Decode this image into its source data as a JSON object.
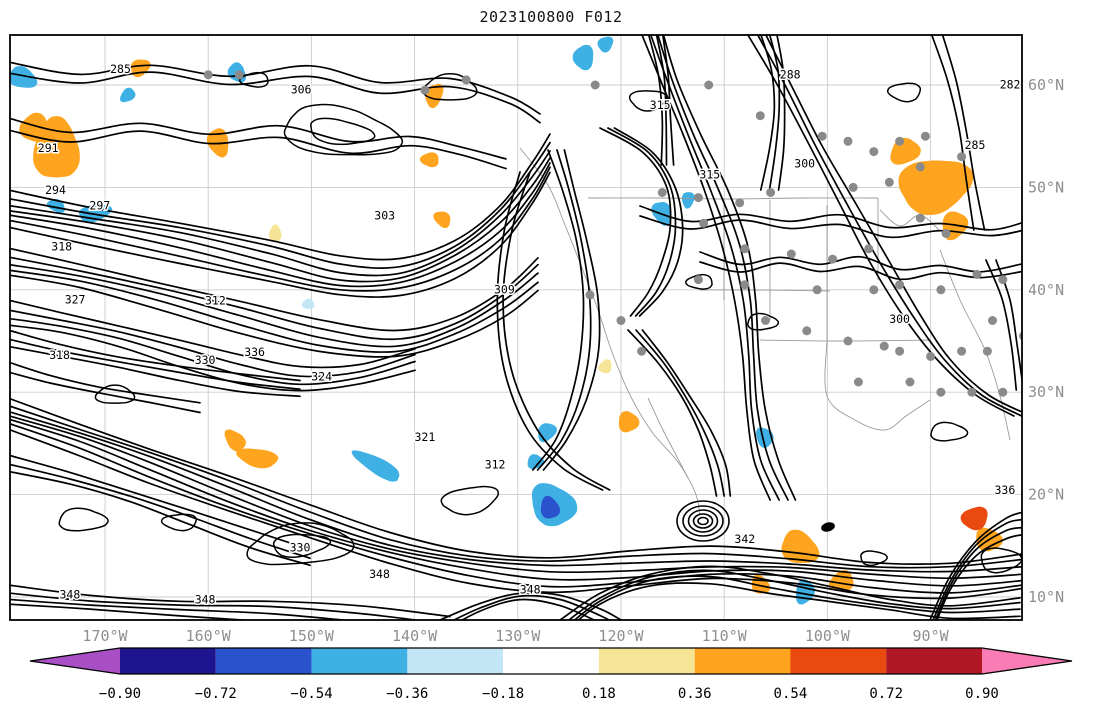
{
  "title": "2023100800 F012",
  "chart_data": {
    "type": "contour-map",
    "title": "2023100800 F012",
    "grid": true,
    "map_extent": {
      "lon_min": -179.2,
      "lon_max": -81.1,
      "lat_min": 7.8,
      "lat_max": 64.9
    },
    "x_axis": {
      "tick_labels": [
        "170°W",
        "160°W",
        "150°W",
        "140°W",
        "130°W",
        "120°W",
        "110°W",
        "100°W",
        "90°W"
      ],
      "tick_lons": [
        -170,
        -160,
        -150,
        -140,
        -130,
        -120,
        -110,
        -100,
        -90
      ]
    },
    "y_axis": {
      "tick_labels": [
        "60°N",
        "50°N",
        "40°N",
        "30°N",
        "20°N",
        "10°N"
      ],
      "tick_lats": [
        60,
        50,
        40,
        30,
        20,
        10
      ]
    },
    "contour_labels_format": "[value, lon, lat]",
    "contour_labels": [
      [
        285,
        -168.5,
        61.5
      ],
      [
        306,
        -151.0,
        59.5
      ],
      [
        315,
        -116.2,
        58.0
      ],
      [
        288,
        -103.6,
        61.0
      ],
      [
        282,
        -82.3,
        60.0
      ],
      [
        285,
        -85.7,
        54.1
      ],
      [
        291,
        -175.5,
        53.8
      ],
      [
        294,
        -174.8,
        49.7
      ],
      [
        297,
        -170.5,
        48.2
      ],
      [
        303,
        -142.9,
        47.2
      ],
      [
        300,
        -102.2,
        52.3
      ],
      [
        315,
        -111.4,
        51.2
      ],
      [
        318,
        -174.2,
        44.2
      ],
      [
        327,
        -172.9,
        39.0
      ],
      [
        312,
        -159.3,
        38.9
      ],
      [
        309,
        -131.3,
        40.0
      ],
      [
        318,
        -174.4,
        33.6
      ],
      [
        330,
        -160.3,
        33.1
      ],
      [
        336,
        -155.5,
        33.9
      ],
      [
        300,
        -93.0,
        37.1
      ],
      [
        321,
        -139.0,
        25.6
      ],
      [
        312,
        -132.2,
        22.9
      ],
      [
        324,
        -149.0,
        31.5
      ],
      [
        342,
        -108.0,
        15.6
      ],
      [
        336,
        -82.8,
        20.4
      ],
      [
        330,
        -151.1,
        14.8
      ],
      [
        348,
        -143.4,
        12.2
      ],
      [
        348,
        -128.8,
        10.7
      ],
      [
        348,
        -173.4,
        10.2
      ],
      [
        348,
        -160.3,
        9.7
      ]
    ],
    "stations_format": "[lon, lat]",
    "stations": [
      [
        -160,
        61
      ],
      [
        -157,
        61
      ],
      [
        -139,
        59.5
      ],
      [
        -135,
        60.5
      ],
      [
        -122.5,
        60
      ],
      [
        -111.5,
        60
      ],
      [
        -106.5,
        57
      ],
      [
        -100.5,
        55
      ],
      [
        -98,
        54.5
      ],
      [
        -95.5,
        53.5
      ],
      [
        -93,
        54.5
      ],
      [
        -90.5,
        55
      ],
      [
        -116,
        49.5
      ],
      [
        -112.5,
        49
      ],
      [
        -108.5,
        48.5
      ],
      [
        -105.5,
        49.5
      ],
      [
        -97.5,
        50
      ],
      [
        -94,
        50.5
      ],
      [
        -112,
        46.5
      ],
      [
        -108,
        44
      ],
      [
        -103.5,
        43.5
      ],
      [
        -99.5,
        43
      ],
      [
        -96,
        44
      ],
      [
        -91,
        47
      ],
      [
        -88.5,
        45.5
      ],
      [
        -112.5,
        41
      ],
      [
        -108,
        40.5
      ],
      [
        -101,
        40
      ],
      [
        -95.5,
        40
      ],
      [
        -93,
        40.5
      ],
      [
        -89,
        40
      ],
      [
        -85.5,
        41.5
      ],
      [
        -83,
        41
      ],
      [
        -80.5,
        41
      ],
      [
        -106,
        37
      ],
      [
        -102,
        36
      ],
      [
        -98,
        35
      ],
      [
        -94.5,
        34.5
      ],
      [
        -93,
        34
      ],
      [
        -90,
        33.5
      ],
      [
        -87,
        34
      ],
      [
        -84.5,
        34
      ],
      [
        -84,
        37
      ],
      [
        -81,
        35.5
      ],
      [
        -97,
        31
      ],
      [
        -92,
        31
      ],
      [
        -89,
        30
      ],
      [
        -86,
        30
      ],
      [
        -83,
        30
      ],
      [
        -118,
        34
      ],
      [
        -120,
        37
      ],
      [
        -123,
        39.5
      ],
      [
        -87,
        53
      ],
      [
        -91,
        52
      ]
    ],
    "shaded_regions_format": "[lon, lat, rx_deg, ry_deg, value]",
    "shaded_regions": [
      [
        -174.7,
        53.7,
        2.2,
        3.0,
        0.45
      ],
      [
        -176.8,
        55.8,
        1.4,
        1.4,
        0.45
      ],
      [
        -159.0,
        54.4,
        1.4,
        1.0,
        0.45
      ],
      [
        -138.1,
        59.0,
        1.2,
        0.8,
        0.45
      ],
      [
        -166.6,
        61.7,
        1.0,
        0.8,
        0.45
      ],
      [
        -138.5,
        52.7,
        0.9,
        0.7,
        0.45
      ],
      [
        -137.3,
        46.9,
        0.9,
        0.7,
        0.45
      ],
      [
        -89.6,
        50.2,
        2.6,
        3.6,
        0.45
      ],
      [
        -87.7,
        46.3,
        1.4,
        1.2,
        0.45
      ],
      [
        -92.5,
        53.5,
        1.5,
        1.2,
        0.45
      ],
      [
        -155.2,
        23.6,
        2.0,
        0.9,
        0.45
      ],
      [
        -157.4,
        25.3,
        1.2,
        0.8,
        0.45
      ],
      [
        -119.3,
        27.1,
        1.0,
        1.0,
        0.45
      ],
      [
        -102.7,
        14.8,
        1.5,
        1.9,
        0.45
      ],
      [
        -98.6,
        11.5,
        1.2,
        1.0,
        0.45
      ],
      [
        -84.4,
        15.6,
        1.3,
        1.1,
        0.45
      ],
      [
        -106.5,
        11.2,
        1.0,
        0.8,
        0.45
      ],
      [
        -153.5,
        45.5,
        0.8,
        0.6,
        0.28
      ],
      [
        -121.5,
        32.5,
        0.7,
        0.6,
        0.28
      ],
      [
        -85.7,
        17.7,
        1.3,
        1.1,
        0.6
      ],
      [
        -178.0,
        60.7,
        1.4,
        1.0,
        -0.45
      ],
      [
        -157.2,
        61.2,
        1.0,
        0.8,
        -0.45
      ],
      [
        -123.6,
        62.7,
        1.2,
        1.0,
        -0.45
      ],
      [
        -121.5,
        64.0,
        0.8,
        0.7,
        -0.45
      ],
      [
        -171.0,
        47.5,
        1.6,
        0.8,
        -0.45
      ],
      [
        -174.7,
        48.2,
        0.9,
        0.6,
        -0.45
      ],
      [
        -116.0,
        47.5,
        1.2,
        0.9,
        -0.45
      ],
      [
        -113.5,
        48.8,
        0.8,
        0.6,
        -0.45
      ],
      [
        -127.2,
        26.1,
        1.0,
        0.8,
        -0.45
      ],
      [
        -128.3,
        23.2,
        0.8,
        0.7,
        -0.45
      ],
      [
        -143.6,
        22.8,
        2.6,
        0.8,
        -0.45
      ],
      [
        -106.1,
        25.6,
        1.0,
        0.8,
        -0.45
      ],
      [
        -102.2,
        10.5,
        1.2,
        0.9,
        -0.45
      ],
      [
        -167.8,
        59.0,
        0.8,
        0.6,
        -0.45
      ],
      [
        -150.3,
        38.6,
        0.6,
        0.5,
        -0.28
      ],
      [
        -126.6,
        19.0,
        2.3,
        1.9,
        -0.45
      ],
      [
        -126.9,
        18.7,
        1.1,
        0.9,
        -0.65
      ]
    ],
    "colorbar": {
      "tick_labels": [
        "−0.90",
        "−0.72",
        "−0.54",
        "−0.36",
        "−0.18",
        "0.18",
        "0.36",
        "0.54",
        "0.72",
        "0.90"
      ],
      "levels": [
        -0.9,
        -0.72,
        -0.54,
        -0.36,
        -0.18,
        0.18,
        0.36,
        0.54,
        0.72,
        0.9
      ],
      "segment_colors": [
        "#1f148f",
        "#2a52cc",
        "#3fb0e4",
        "#c3e6f7",
        "#ffffff",
        "#f6e596",
        "#ffa41e",
        "#ea4a10",
        "#b01826"
      ],
      "left_arrow_color": "#a94fc6",
      "right_arrow_color": "#f97cb5",
      "outline_color": "#000000"
    }
  }
}
